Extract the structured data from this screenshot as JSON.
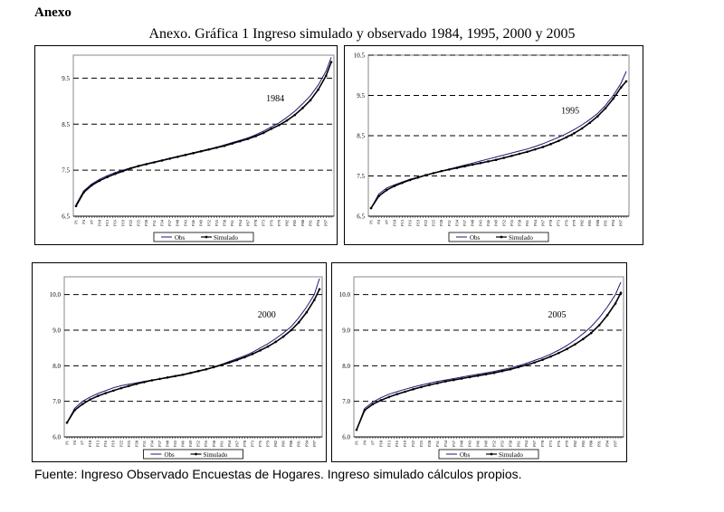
{
  "heading": "Anexo",
  "subtitle": "Anexo. Gráfica 1 Ingreso simulado y observado 1984, 1995, 2000 y 2005",
  "footer": "Fuente: Ingreso Observado Encuestas de Hogares. Ingreso simulado cálculos propios.",
  "chart_data": [
    {
      "type": "line",
      "title": "1984",
      "x": [
        1,
        4,
        7,
        10,
        13,
        16,
        19,
        22,
        25,
        28,
        31,
        34,
        37,
        40,
        43,
        46,
        49,
        52,
        55,
        58,
        61,
        64,
        67,
        70,
        73,
        76,
        79,
        82,
        85,
        88,
        91,
        94,
        97,
        99
      ],
      "xtick_labels": [
        "P1",
        "P4",
        "P7",
        "P10",
        "P13",
        "P16",
        "P19",
        "P22",
        "P25",
        "P28",
        "P31",
        "P34",
        "P37",
        "P40",
        "P43",
        "P46",
        "P49",
        "P52",
        "P55",
        "P58",
        "P61",
        "P64",
        "P67",
        "P70",
        "P73",
        "P76",
        "P79",
        "P82",
        "P85",
        "P88",
        "P91",
        "P94",
        "P97"
      ],
      "ylim": [
        6.5,
        10.0
      ],
      "yticks": [
        "6.5",
        "7.5",
        "8.5",
        "9.5"
      ],
      "ytick_values": [
        6.5,
        7.5,
        8.5,
        9.5
      ],
      "series": [
        {
          "name": "Obs",
          "color": "#1a1a7a",
          "values": [
            6.75,
            7.05,
            7.2,
            7.3,
            7.38,
            7.45,
            7.5,
            7.55,
            7.6,
            7.64,
            7.68,
            7.72,
            7.76,
            7.8,
            7.84,
            7.88,
            7.92,
            7.96,
            8.0,
            8.05,
            8.1,
            8.15,
            8.2,
            8.27,
            8.35,
            8.44,
            8.53,
            8.65,
            8.78,
            8.94,
            9.12,
            9.35,
            9.65,
            9.95
          ]
        },
        {
          "name": "Simulado",
          "color": "#000000",
          "values": [
            6.72,
            7.02,
            7.17,
            7.27,
            7.35,
            7.42,
            7.48,
            7.54,
            7.59,
            7.63,
            7.67,
            7.71,
            7.75,
            7.79,
            7.83,
            7.87,
            7.91,
            7.95,
            7.99,
            8.03,
            8.08,
            8.13,
            8.18,
            8.24,
            8.31,
            8.4,
            8.48,
            8.58,
            8.7,
            8.85,
            9.02,
            9.25,
            9.55,
            9.85
          ]
        }
      ]
    },
    {
      "type": "line",
      "title": "1995",
      "x": [
        1,
        4,
        7,
        10,
        13,
        16,
        19,
        22,
        25,
        28,
        31,
        34,
        37,
        40,
        43,
        46,
        49,
        52,
        55,
        58,
        61,
        64,
        67,
        70,
        73,
        76,
        79,
        82,
        85,
        88,
        91,
        94,
        97,
        99
      ],
      "xtick_labels": [
        "P1",
        "P4",
        "P7",
        "P10",
        "P13",
        "P16",
        "P19",
        "P22",
        "P25",
        "P28",
        "P31",
        "P34",
        "P37",
        "P40",
        "P43",
        "P46",
        "P49",
        "P52",
        "P55",
        "P58",
        "P61",
        "P64",
        "P67",
        "P70",
        "P73",
        "P76",
        "P79",
        "P82",
        "P85",
        "P88",
        "P91",
        "P94",
        "P97"
      ],
      "ylim": [
        6.5,
        10.5
      ],
      "yticks": [
        "6.5",
        "7.5",
        "8.5",
        "9.5",
        "10.5"
      ],
      "ytick_values": [
        6.5,
        7.5,
        8.5,
        9.5,
        10.5
      ],
      "series": [
        {
          "name": "Obs",
          "color": "#1a1a7a",
          "values": [
            6.7,
            7.05,
            7.2,
            7.28,
            7.35,
            7.42,
            7.47,
            7.52,
            7.57,
            7.62,
            7.67,
            7.72,
            7.77,
            7.82,
            7.87,
            7.92,
            7.97,
            8.02,
            8.07,
            8.12,
            8.17,
            8.23,
            8.3,
            8.38,
            8.46,
            8.55,
            8.65,
            8.77,
            8.9,
            9.05,
            9.25,
            9.5,
            9.8,
            10.1
          ]
        },
        {
          "name": "Simulado",
          "color": "#000000",
          "values": [
            6.7,
            7.0,
            7.15,
            7.25,
            7.33,
            7.4,
            7.46,
            7.52,
            7.57,
            7.62,
            7.66,
            7.7,
            7.74,
            7.78,
            7.82,
            7.86,
            7.9,
            7.95,
            8.0,
            8.05,
            8.1,
            8.16,
            8.22,
            8.29,
            8.37,
            8.46,
            8.56,
            8.68,
            8.82,
            8.98,
            9.18,
            9.42,
            9.7,
            9.85
          ]
        }
      ]
    },
    {
      "type": "line",
      "title": "2000",
      "x": [
        1,
        4,
        7,
        10,
        13,
        16,
        19,
        22,
        25,
        28,
        31,
        34,
        37,
        40,
        43,
        46,
        49,
        52,
        55,
        58,
        61,
        64,
        67,
        70,
        73,
        76,
        79,
        82,
        85,
        88,
        91,
        94,
        97,
        99
      ],
      "xtick_labels": [
        "P1",
        "P4",
        "P7",
        "P10",
        "P13",
        "P16",
        "P19",
        "P22",
        "P25",
        "P28",
        "P31",
        "P34",
        "P37",
        "P40",
        "P43",
        "P46",
        "P49",
        "P52",
        "P55",
        "P58",
        "P61",
        "P64",
        "P67",
        "P70",
        "P73",
        "P76",
        "P79",
        "P82",
        "P85",
        "P88",
        "P91",
        "P94",
        "P97"
      ],
      "ylim": [
        6.0,
        10.5
      ],
      "yticks": [
        "6.0",
        "7.0",
        "8.0",
        "9.0",
        "10.0"
      ],
      "ytick_values": [
        6.0,
        7.0,
        8.0,
        9.0,
        10.0
      ],
      "series": [
        {
          "name": "Obs",
          "color": "#1a1a7a",
          "values": [
            6.4,
            6.8,
            7.0,
            7.12,
            7.22,
            7.3,
            7.38,
            7.44,
            7.48,
            7.52,
            7.56,
            7.6,
            7.63,
            7.66,
            7.7,
            7.74,
            7.79,
            7.84,
            7.9,
            7.97,
            8.04,
            8.12,
            8.2,
            8.28,
            8.38,
            8.5,
            8.62,
            8.76,
            8.92,
            9.1,
            9.35,
            9.65,
            10.0,
            10.45
          ]
        },
        {
          "name": "Simulado",
          "color": "#000000",
          "values": [
            6.4,
            6.75,
            6.92,
            7.05,
            7.15,
            7.23,
            7.3,
            7.37,
            7.43,
            7.49,
            7.54,
            7.59,
            7.63,
            7.67,
            7.71,
            7.75,
            7.8,
            7.85,
            7.9,
            7.96,
            8.02,
            8.09,
            8.16,
            8.24,
            8.33,
            8.43,
            8.54,
            8.67,
            8.82,
            9.0,
            9.22,
            9.5,
            9.85,
            10.15
          ]
        }
      ]
    },
    {
      "type": "line",
      "title": "2005",
      "x": [
        1,
        4,
        7,
        10,
        13,
        16,
        19,
        22,
        25,
        28,
        31,
        34,
        37,
        40,
        43,
        46,
        49,
        52,
        55,
        58,
        61,
        64,
        67,
        70,
        73,
        76,
        79,
        82,
        85,
        88,
        91,
        94,
        97,
        99
      ],
      "xtick_labels": [
        "P1",
        "P4",
        "P7",
        "P10",
        "P13",
        "P16",
        "P19",
        "P22",
        "P25",
        "P28",
        "P31",
        "P34",
        "P37",
        "P40",
        "P43",
        "P46",
        "P49",
        "P52",
        "P55",
        "P58",
        "P61",
        "P64",
        "P67",
        "P70",
        "P73",
        "P76",
        "P79",
        "P82",
        "P85",
        "P88",
        "P91",
        "P94",
        "P97"
      ],
      "ylim": [
        6.0,
        10.5
      ],
      "yticks": [
        "6.0",
        "7.0",
        "8.0",
        "9.0",
        "10.0"
      ],
      "ytick_values": [
        6.0,
        7.0,
        8.0,
        9.0,
        10.0
      ],
      "series": [
        {
          "name": "Obs",
          "color": "#1a1a7a",
          "values": [
            6.2,
            6.8,
            6.98,
            7.1,
            7.2,
            7.27,
            7.34,
            7.4,
            7.46,
            7.51,
            7.56,
            7.6,
            7.64,
            7.68,
            7.72,
            7.76,
            7.8,
            7.84,
            7.89,
            7.94,
            8.0,
            8.07,
            8.15,
            8.23,
            8.33,
            8.44,
            8.57,
            8.72,
            8.9,
            9.1,
            9.35,
            9.65,
            10.0,
            10.35
          ]
        },
        {
          "name": "Simulado",
          "color": "#000000",
          "values": [
            6.2,
            6.75,
            6.92,
            7.03,
            7.12,
            7.2,
            7.27,
            7.34,
            7.4,
            7.46,
            7.51,
            7.56,
            7.6,
            7.64,
            7.68,
            7.72,
            7.76,
            7.8,
            7.85,
            7.9,
            7.96,
            8.02,
            8.09,
            8.17,
            8.26,
            8.36,
            8.47,
            8.6,
            8.75,
            8.92,
            9.14,
            9.42,
            9.75,
            10.05
          ]
        }
      ]
    }
  ]
}
